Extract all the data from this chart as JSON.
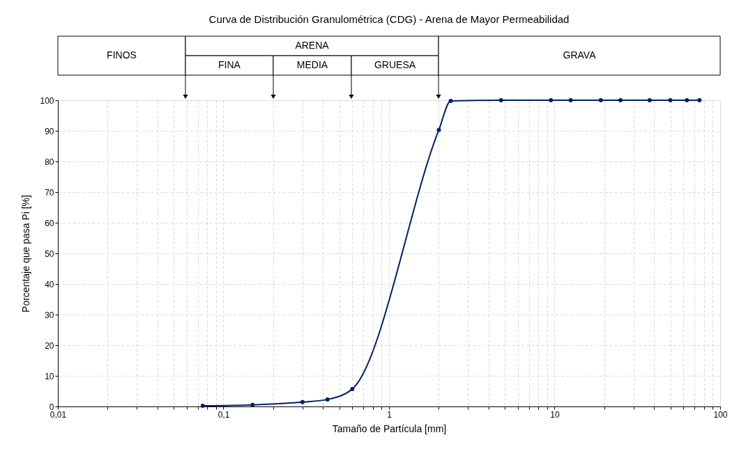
{
  "chart_data": {
    "type": "line",
    "title": "Curva de Distribución Granulométrica (CDG)   - Arena de Mayor Permeabilidad",
    "xlabel": "Tamaño de Partícula [mm]",
    "ylabel": "Porcentaje que pasa Pi [%]",
    "log": "x",
    "grid": true,
    "marker": "circle",
    "line_style": "solid",
    "xlim": [
      0.01,
      100
    ],
    "ylim": [
      0,
      100
    ],
    "xticks": [
      {
        "value": 0.01,
        "label": "0,01"
      },
      {
        "value": 0.02,
        "label": null
      },
      {
        "value": 0.03,
        "label": null
      },
      {
        "value": 0.04,
        "label": null
      },
      {
        "value": 0.05,
        "label": null
      },
      {
        "value": 0.06,
        "label": null
      },
      {
        "value": 0.07,
        "label": null
      },
      {
        "value": 0.08,
        "label": null
      },
      {
        "value": 0.09,
        "label": null
      },
      {
        "value": 0.1,
        "label": "0,1"
      },
      {
        "value": 0.2,
        "label": null
      },
      {
        "value": 0.3,
        "label": null
      },
      {
        "value": 0.4,
        "label": null
      },
      {
        "value": 0.5,
        "label": null
      },
      {
        "value": 0.6,
        "label": null
      },
      {
        "value": 0.7,
        "label": null
      },
      {
        "value": 0.8,
        "label": null
      },
      {
        "value": 0.9,
        "label": null
      },
      1,
      {
        "value": 2,
        "label": null
      },
      {
        "value": 3,
        "label": null
      },
      {
        "value": 4,
        "label": null
      },
      {
        "value": 5,
        "label": null
      },
      {
        "value": 6,
        "label": null
      },
      {
        "value": 7,
        "label": null
      },
      {
        "value": 8,
        "label": null
      },
      {
        "value": 9,
        "label": null
      },
      10,
      {
        "value": 20,
        "label": null
      },
      {
        "value": 30,
        "label": null
      },
      {
        "value": 40,
        "label": null
      },
      {
        "value": 50,
        "label": null
      },
      {
        "value": 60,
        "label": null
      },
      {
        "value": 70,
        "label": null
      },
      {
        "value": 80,
        "label": null
      },
      {
        "value": 90,
        "label": null
      },
      100
    ],
    "yticks": [
      0,
      10,
      20,
      30,
      40,
      50,
      60,
      70,
      80,
      90,
      100
    ],
    "x": [
      0.075,
      0.15,
      0.3,
      0.425,
      0.6,
      2,
      2.36,
      4.75,
      9.5,
      12.5,
      19,
      25,
      37.5,
      50,
      63,
      75
    ],
    "series": [
      {
        "color": "#002060",
        "values": [
          0.2,
          0.5,
          1.4,
          2.3,
          5.7,
          90.3,
          99.8,
          100,
          100,
          100,
          100,
          100,
          100,
          100,
          100,
          100
        ]
      }
    ],
    "annotations": [
      "FINOS",
      "ARENA",
      "FINA",
      "MEDIA",
      "GRUESA",
      "GRAVA"
    ]
  }
}
